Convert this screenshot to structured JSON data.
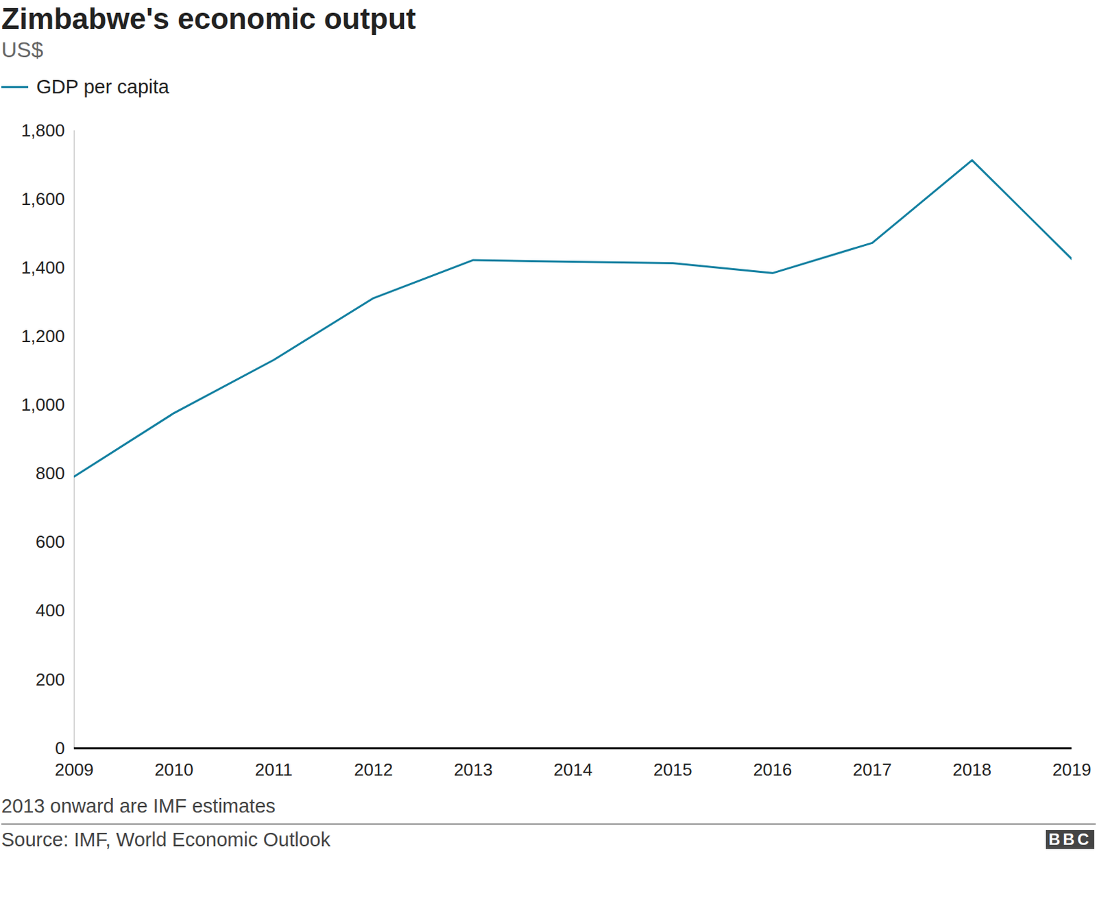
{
  "chart_data": {
    "type": "line",
    "title": "Zimbabwe's economic output",
    "subtitle": "US$",
    "note": "2013 onward are IMF estimates",
    "source": "Source: IMF, World Economic Outlook",
    "logo": "BBC",
    "x": [
      2009,
      2010,
      2011,
      2012,
      2013,
      2014,
      2015,
      2016,
      2017,
      2018,
      2019
    ],
    "series": [
      {
        "name": "GDP per capita",
        "color": "#1380a1",
        "values": [
          792,
          977,
          1132,
          1312,
          1423,
          1418,
          1414,
          1385,
          1473,
          1714,
          1426
        ]
      }
    ],
    "xlim": [
      2009,
      2019
    ],
    "xticks": [
      2009,
      2010,
      2011,
      2012,
      2013,
      2014,
      2015,
      2016,
      2017,
      2018,
      2019
    ],
    "ylim": [
      0,
      1800
    ],
    "yticks": [
      0,
      200,
      400,
      600,
      800,
      {
        "value": 1000,
        "label": "1,000"
      },
      {
        "value": 1200,
        "label": "1,200"
      },
      {
        "value": 1400,
        "label": "1,400"
      },
      {
        "value": 1600,
        "label": "1,600"
      },
      {
        "value": 1800,
        "label": "1,800"
      }
    ],
    "grid": false,
    "legend": "top-left"
  }
}
